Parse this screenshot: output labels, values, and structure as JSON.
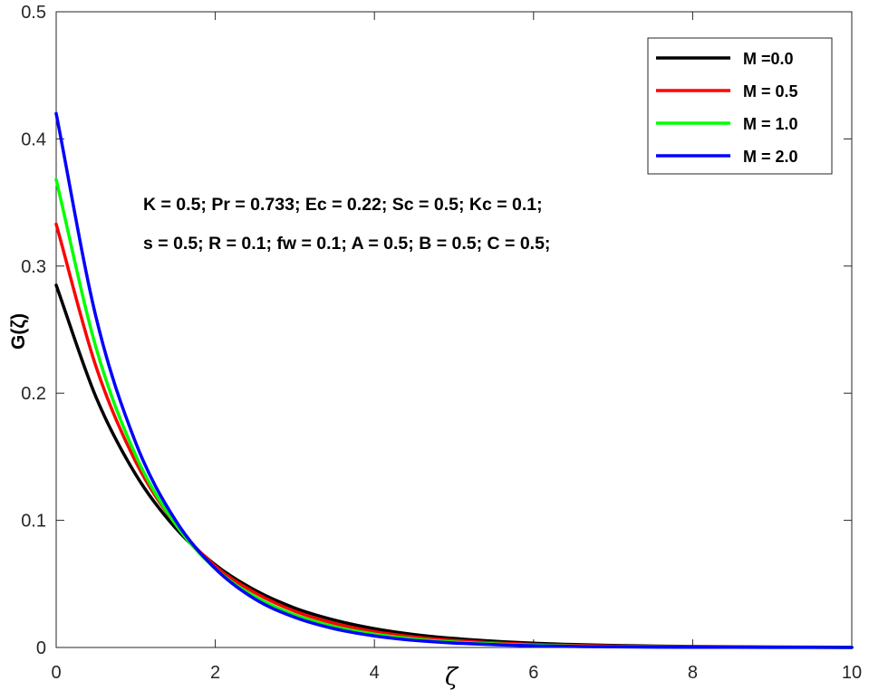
{
  "chart_data": {
    "type": "line",
    "xlabel": "ζ",
    "ylabel": "G(ζ)",
    "xlim": [
      0,
      10
    ],
    "ylim": [
      0,
      0.5
    ],
    "xticks": [
      0,
      2,
      4,
      6,
      8,
      10
    ],
    "yticks": [
      0,
      0.1,
      0.2,
      0.3,
      0.4,
      0.5
    ],
    "xtick_labels": [
      "0",
      "2",
      "4",
      "6",
      "8",
      "10"
    ],
    "ytick_labels": [
      "0",
      "0.1",
      "0.2",
      "0.3",
      "0.4",
      "0.5"
    ],
    "grid": false,
    "legend_position": "top-right",
    "annotations": [
      "K = 0.5; Pr = 0.733; Ec = 0.22; Sc = 0.5; Kc = 0.1;",
      "s = 0.5; R = 0.1; fw = 0.1; A = 0.5; B = 0.5; C = 0.5;"
    ],
    "x": [
      0,
      0.5,
      1,
      1.5,
      2,
      2.5,
      3,
      3.5,
      4,
      4.5,
      5,
      6,
      7,
      8,
      9,
      10
    ],
    "series": [
      {
        "name": "M =0.0",
        "color": "#000000",
        "values": [
          0.285,
          0.197,
          0.136,
          0.094,
          0.065,
          0.045,
          0.031,
          0.0215,
          0.0148,
          0.0102,
          0.0071,
          0.0034,
          0.0016,
          0.0008,
          0.0004,
          0.0002
        ]
      },
      {
        "name": "M = 0.5",
        "color": "#ff0000",
        "values": [
          0.333,
          0.221,
          0.146,
          0.097,
          0.064,
          0.043,
          0.0285,
          0.0189,
          0.0125,
          0.0083,
          0.0055,
          0.0024,
          0.0011,
          0.0005,
          0.0002,
          0.0001
        ]
      },
      {
        "name": "M = 1.0",
        "color": "#00ff00",
        "values": [
          0.368,
          0.236,
          0.151,
          0.097,
          0.062,
          0.04,
          0.0256,
          0.0164,
          0.0105,
          0.0067,
          0.0043,
          0.0018,
          0.0007,
          0.0003,
          0.0001,
          0.0
        ]
      },
      {
        "name": "M = 2.0",
        "color": "#0000ff",
        "values": [
          0.42,
          0.26,
          0.161,
          0.1,
          0.062,
          0.038,
          0.0237,
          0.0147,
          0.0091,
          0.0056,
          0.0035,
          0.0013,
          0.0005,
          0.0002,
          0.0001,
          0.0
        ]
      }
    ]
  }
}
